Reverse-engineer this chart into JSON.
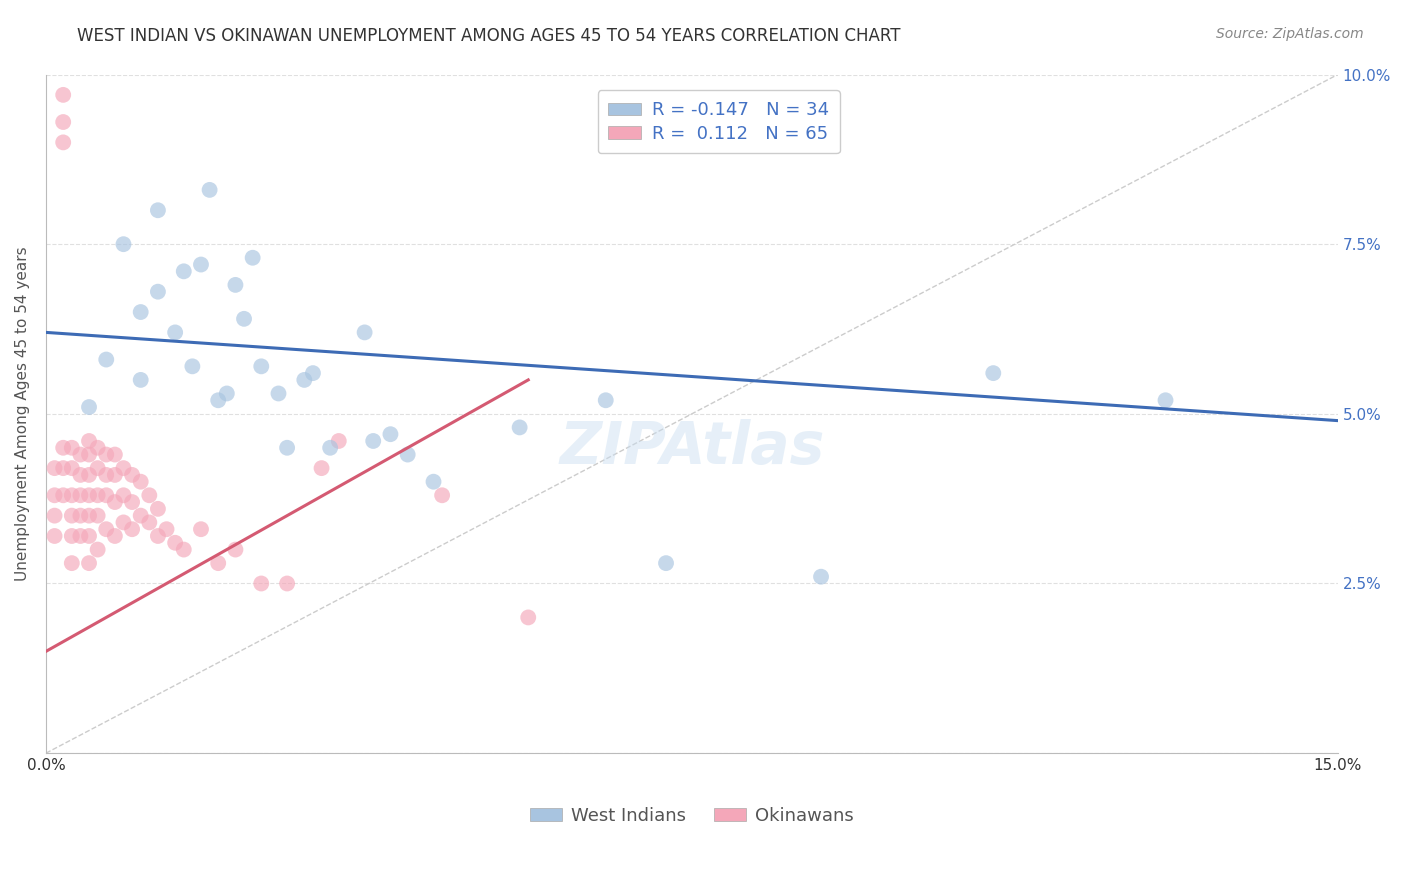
{
  "title": "WEST INDIAN VS OKINAWAN UNEMPLOYMENT AMONG AGES 45 TO 54 YEARS CORRELATION CHART",
  "source": "Source: ZipAtlas.com",
  "ylabel": "Unemployment Among Ages 45 to 54 years",
  "xlim": [
    0.0,
    0.15
  ],
  "ylim": [
    0.0,
    0.1
  ],
  "xticks": [
    0.0,
    0.03,
    0.06,
    0.09,
    0.12,
    0.15
  ],
  "yticks": [
    0.0,
    0.025,
    0.05,
    0.075,
    0.1
  ],
  "west_indian_color": "#a8c4e0",
  "okinawan_color": "#f4a7b9",
  "west_indian_line_color": "#3d6bb5",
  "okinawan_line_color": "#d45a72",
  "R_west": -0.147,
  "N_west": 34,
  "R_okin": 0.112,
  "N_okin": 65,
  "legend_label_west": "West Indians",
  "legend_label_okin": "Okinawans",
  "west_indian_x": [
    0.005,
    0.007,
    0.009,
    0.011,
    0.011,
    0.013,
    0.013,
    0.015,
    0.016,
    0.017,
    0.018,
    0.019,
    0.02,
    0.021,
    0.022,
    0.023,
    0.024,
    0.025,
    0.027,
    0.028,
    0.03,
    0.031,
    0.033,
    0.037,
    0.038,
    0.04,
    0.042,
    0.045,
    0.055,
    0.065,
    0.072,
    0.09,
    0.11,
    0.13
  ],
  "west_indian_y": [
    0.051,
    0.058,
    0.075,
    0.065,
    0.055,
    0.08,
    0.068,
    0.062,
    0.071,
    0.057,
    0.072,
    0.083,
    0.052,
    0.053,
    0.069,
    0.064,
    0.073,
    0.057,
    0.053,
    0.045,
    0.055,
    0.056,
    0.045,
    0.062,
    0.046,
    0.047,
    0.044,
    0.04,
    0.048,
    0.052,
    0.028,
    0.026,
    0.056,
    0.052
  ],
  "okinawan_x": [
    0.001,
    0.001,
    0.001,
    0.001,
    0.002,
    0.002,
    0.002,
    0.002,
    0.002,
    0.002,
    0.003,
    0.003,
    0.003,
    0.003,
    0.003,
    0.003,
    0.004,
    0.004,
    0.004,
    0.004,
    0.004,
    0.005,
    0.005,
    0.005,
    0.005,
    0.005,
    0.005,
    0.005,
    0.006,
    0.006,
    0.006,
    0.006,
    0.006,
    0.007,
    0.007,
    0.007,
    0.007,
    0.008,
    0.008,
    0.008,
    0.008,
    0.009,
    0.009,
    0.009,
    0.01,
    0.01,
    0.01,
    0.011,
    0.011,
    0.012,
    0.012,
    0.013,
    0.013,
    0.014,
    0.015,
    0.016,
    0.018,
    0.02,
    0.022,
    0.025,
    0.028,
    0.032,
    0.034,
    0.046,
    0.056
  ],
  "okinawan_y": [
    0.042,
    0.038,
    0.035,
    0.032,
    0.097,
    0.093,
    0.09,
    0.045,
    0.042,
    0.038,
    0.045,
    0.042,
    0.038,
    0.035,
    0.032,
    0.028,
    0.044,
    0.041,
    0.038,
    0.035,
    0.032,
    0.046,
    0.044,
    0.041,
    0.038,
    0.035,
    0.032,
    0.028,
    0.045,
    0.042,
    0.038,
    0.035,
    0.03,
    0.044,
    0.041,
    0.038,
    0.033,
    0.044,
    0.041,
    0.037,
    0.032,
    0.042,
    0.038,
    0.034,
    0.041,
    0.037,
    0.033,
    0.04,
    0.035,
    0.038,
    0.034,
    0.036,
    0.032,
    0.033,
    0.031,
    0.03,
    0.033,
    0.028,
    0.03,
    0.025,
    0.025,
    0.042,
    0.046,
    0.038,
    0.02
  ],
  "marker_size": 130,
  "marker_alpha": 0.65,
  "background_color": "#ffffff",
  "grid_color": "#e0e0e0",
  "title_fontsize": 12,
  "label_fontsize": 11,
  "tick_fontsize": 11,
  "source_fontsize": 10,
  "legend_fontsize": 13,
  "west_trend_x0": 0.0,
  "west_trend_y0": 0.062,
  "west_trend_x1": 0.15,
  "west_trend_y1": 0.049,
  "okin_trend_x0": 0.0,
  "okin_trend_y0": 0.015,
  "okin_trend_x1": 0.056,
  "okin_trend_y1": 0.055
}
